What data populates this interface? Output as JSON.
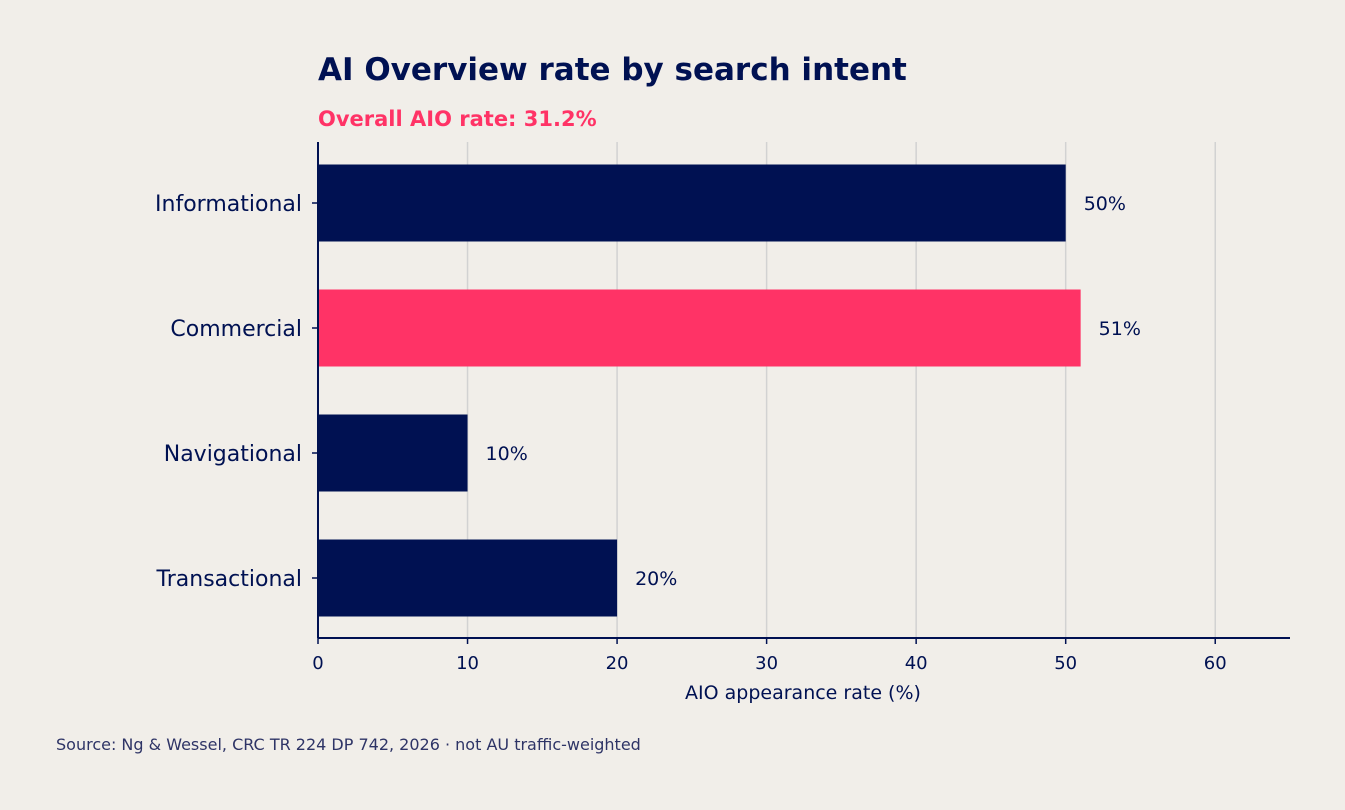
{
  "chart_data": {
    "type": "bar",
    "orientation": "horizontal",
    "title": "AI Overview rate by search intent",
    "subtitle": "Overall AIO rate: 31.2%",
    "categories": [
      "Informational",
      "Commercial",
      "Navigational",
      "Transactional"
    ],
    "values": [
      50,
      51,
      10,
      20
    ],
    "value_labels": [
      "50%",
      "51%",
      "10%",
      "20%"
    ],
    "highlight_category": "Commercial",
    "xlabel": "AIO appearance rate (%)",
    "ylabel": "",
    "xlim": [
      0,
      65
    ],
    "xticks": [
      0,
      10,
      20,
      30,
      40,
      50,
      60
    ],
    "xtick_labels": [
      "0",
      "10",
      "20",
      "30",
      "40",
      "50",
      "60"
    ],
    "grid": "vertical",
    "source": "Source: Ng & Wessel, CRC TR 224 DP 742, 2026 · not AU traffic-weighted"
  },
  "colors": {
    "background": "#f1eee9",
    "bar": "#001152",
    "highlight": "#ff3366",
    "grid": "#d2d2d2",
    "axis": "#001152",
    "text": "#001152",
    "subtitle": "#ff3366",
    "source": "#2e3466"
  }
}
